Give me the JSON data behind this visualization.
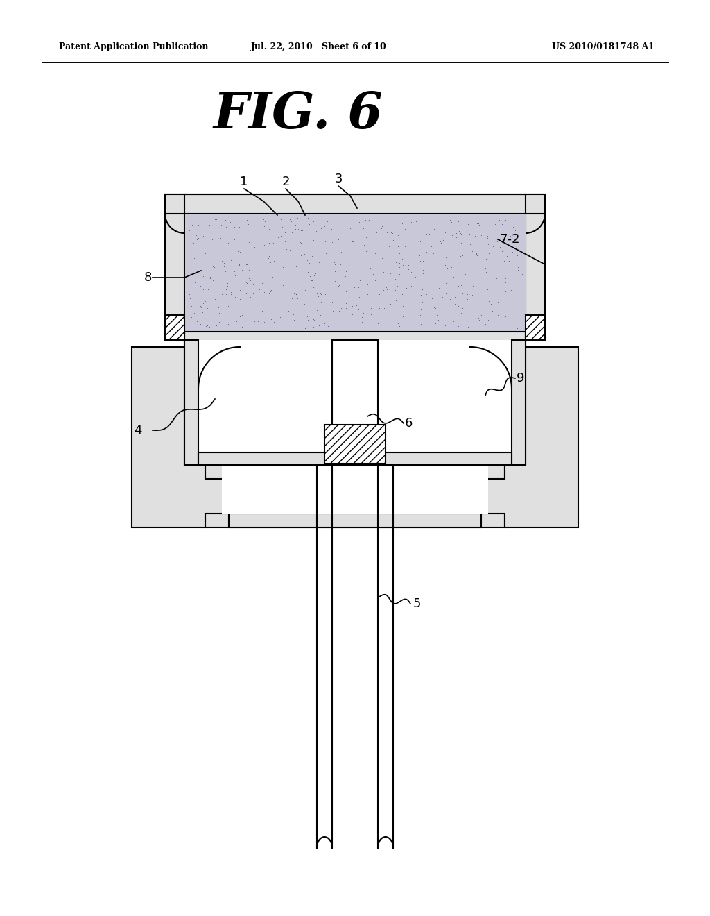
{
  "title": "FIG. 6",
  "header_left": "Patent Application Publication",
  "header_middle": "Jul. 22, 2010   Sheet 6 of 10",
  "header_right": "US 2010/0181748 A1",
  "bg_color": "#ffffff",
  "line_color": "#000000",
  "dot_fill_color": "#c8c8d8",
  "gray_fill": "#e0e0e0",
  "lw": 1.5
}
